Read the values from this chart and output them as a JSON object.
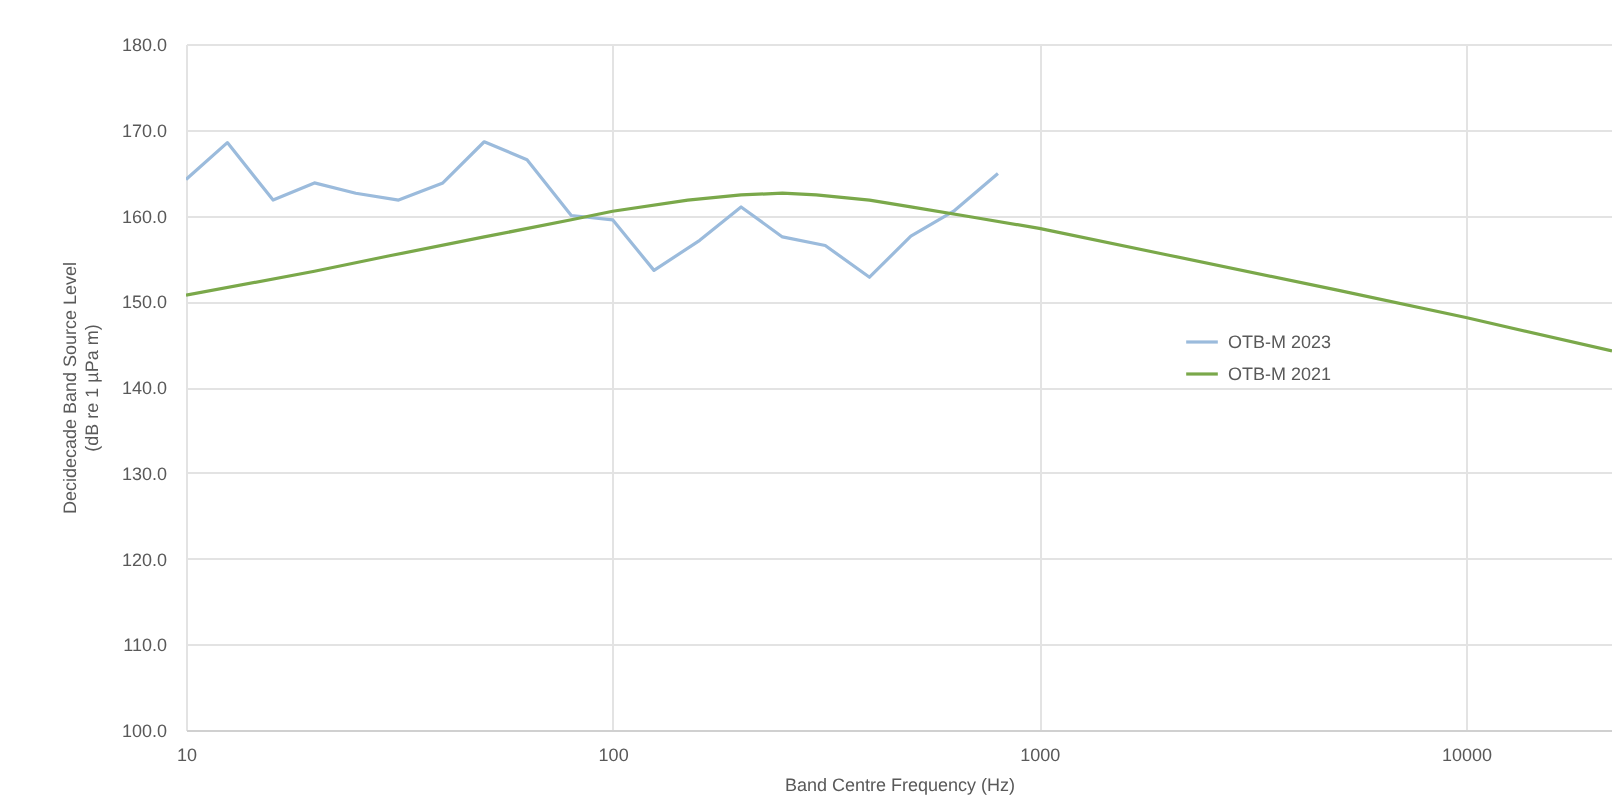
{
  "chart_data": {
    "type": "line",
    "xlabel": "Band Centre Frequency (Hz)",
    "ylabel": "Decidecade Band Source Level\n(dB re 1 µPa m)",
    "log": "x",
    "xlim": [
      10,
      22000
    ],
    "xticks": [
      10,
      100,
      1000,
      10000
    ],
    "ylim": [
      100,
      180
    ],
    "yticks": [
      {
        "value": 100,
        "label": "100.0"
      },
      {
        "value": 110,
        "label": "110.0"
      },
      {
        "value": 120,
        "label": "120.0"
      },
      {
        "value": 130,
        "label": "130.0"
      },
      {
        "value": 140,
        "label": "140.0"
      },
      {
        "value": 150,
        "label": "150.0"
      },
      {
        "value": 160,
        "label": "160.0"
      },
      {
        "value": 170,
        "label": "170.0"
      },
      {
        "value": 180,
        "label": "180.0"
      }
    ],
    "grid": true,
    "legend": "top right",
    "marker": "none",
    "line_style": "solid",
    "series": [
      {
        "name": "OTB-M 2023",
        "color": "#9bbbdc",
        "x": [
          10,
          12.5,
          16,
          20,
          25,
          31.5,
          40,
          50,
          63,
          80,
          100,
          125,
          160,
          200,
          250,
          315,
          400,
          500,
          630,
          800
        ],
        "values": [
          164.2,
          168.5,
          161.8,
          163.8,
          162.6,
          161.8,
          163.8,
          168.6,
          166.5,
          160.0,
          159.5,
          153.6,
          157.1,
          161.0,
          157.5,
          156.5,
          152.8,
          157.6,
          160.5,
          164.9
        ]
      },
      {
        "name": "OTB-M 2021",
        "color": "#7aa84a",
        "x": [
          10,
          20,
          30,
          50,
          80,
          100,
          150,
          200,
          250,
          300,
          400,
          500,
          700,
          1000,
          2000,
          5000,
          10000,
          22000
        ],
        "values": [
          150.7,
          153.5,
          155.3,
          157.5,
          159.5,
          160.5,
          161.8,
          162.4,
          162.6,
          162.4,
          161.8,
          161.0,
          159.8,
          158.5,
          155.4,
          151.3,
          148.1,
          144.2
        ]
      }
    ]
  }
}
